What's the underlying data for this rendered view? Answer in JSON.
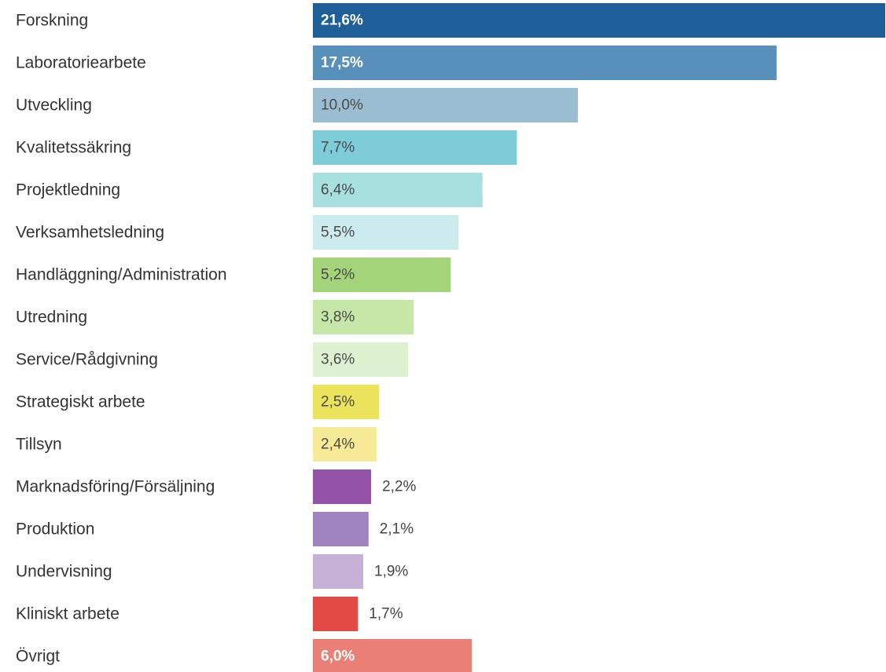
{
  "chart_data": {
    "type": "bar",
    "orientation": "horizontal",
    "title": "",
    "xlabel": "",
    "ylabel": "",
    "categories": [
      "Forskning",
      "Laboratoriearbete",
      "Utveckling",
      "Kvalitetssäkring",
      "Projektledning",
      "Verksamhetsledning",
      "Handläggning/Administration",
      "Utredning",
      "Service/Rådgivning",
      "Strategiskt arbete",
      "Tillsyn",
      "Marknadsföring/Försäljning",
      "Produktion",
      "Undervisning",
      "Kliniskt arbete",
      "Övrigt"
    ],
    "values": [
      21.6,
      17.5,
      10.0,
      7.7,
      6.4,
      5.5,
      5.2,
      3.8,
      3.6,
      2.5,
      2.4,
      2.2,
      2.1,
      1.9,
      1.7,
      6.0
    ],
    "value_labels": [
      "21,6%",
      "17,5%",
      "10,0%",
      "7,7%",
      "6,4%",
      "5,5%",
      "5,2%",
      "3,8%",
      "3,6%",
      "2,5%",
      "2,4%",
      "2,2%",
      "2,1%",
      "1,9%",
      "1,7%",
      "6,0%"
    ],
    "colors": [
      "#1f5f99",
      "#5690bb",
      "#9bbdd2",
      "#7fccd9",
      "#a8dfe0",
      "#cdebee",
      "#a3d47a",
      "#c5e8a8",
      "#dcf1d0",
      "#ece35c",
      "#f7ea96",
      "#9553a8",
      "#a283c1",
      "#c7b0d6",
      "#e24a45",
      "#eb7f75"
    ],
    "label_styles": [
      "inside-bold-white",
      "inside-bold-white",
      "inside",
      "inside",
      "inside",
      "inside",
      "inside",
      "inside",
      "inside",
      "inside",
      "inside",
      "outside",
      "outside",
      "outside",
      "outside",
      "inside-bold-white"
    ],
    "xlim": [
      0,
      21.6
    ],
    "grid": false,
    "legend": "none"
  }
}
